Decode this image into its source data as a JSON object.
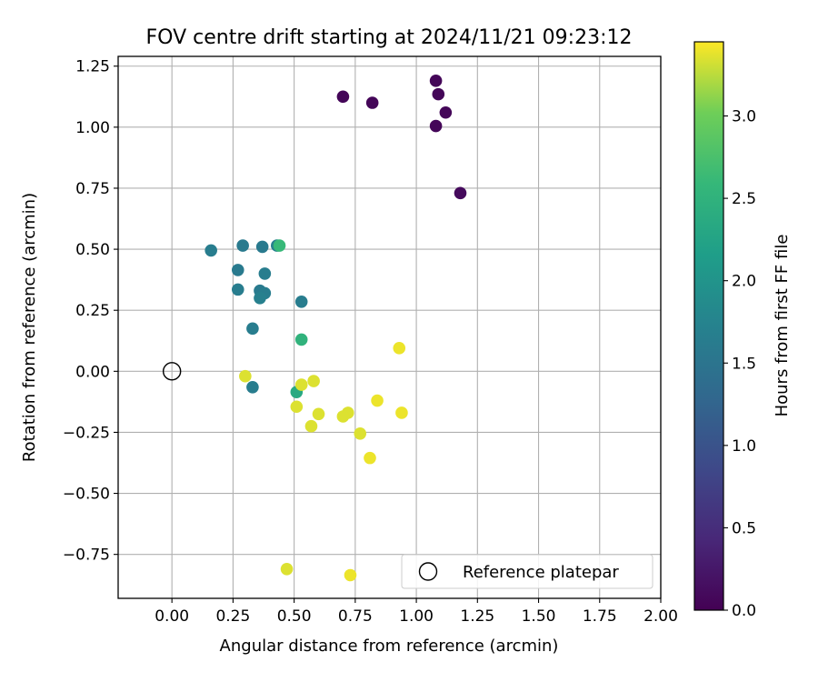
{
  "chart_data": {
    "type": "scatter",
    "title": "FOV centre drift starting at 2024/11/21 09:23:12",
    "xlabel": "Angular distance from reference (arcmin)",
    "ylabel": "Rotation from reference (arcmin)",
    "xlim": [
      -0.22,
      2.0
    ],
    "ylim": [
      -0.93,
      1.29
    ],
    "xticks": [
      0.0,
      0.25,
      0.5,
      0.75,
      1.0,
      1.25,
      1.5,
      1.75,
      2.0
    ],
    "xtick_labels": [
      "0.00",
      "0.25",
      "0.50",
      "0.75",
      "1.00",
      "1.25",
      "1.50",
      "1.75",
      "2.00"
    ],
    "yticks": [
      -0.75,
      -0.5,
      -0.25,
      0.0,
      0.25,
      0.5,
      0.75,
      1.0,
      1.25
    ],
    "ytick_labels": [
      "−0.75",
      "−0.50",
      "−0.25",
      "0.00",
      "0.25",
      "0.50",
      "0.75",
      "1.00",
      "1.25"
    ],
    "grid": true,
    "legend": {
      "placement": "lower-right",
      "entries": [
        "Reference platepar"
      ]
    },
    "colorbar": {
      "label": "Hours from first FF file",
      "colormap": "viridis",
      "range": [
        0.0,
        3.45
      ],
      "ticks": [
        0.0,
        0.5,
        1.0,
        1.5,
        2.0,
        2.5,
        3.0
      ],
      "tick_labels": [
        "0.0",
        "0.5",
        "1.0",
        "1.5",
        "2.0",
        "2.5",
        "3.0"
      ]
    },
    "reference": {
      "name": "Reference platepar",
      "x": 0.0,
      "y": 0.0
    },
    "points": [
      {
        "x": 0.7,
        "y": 1.125,
        "c": 0.05
      },
      {
        "x": 0.82,
        "y": 1.1,
        "c": 0.05
      },
      {
        "x": 1.08,
        "y": 1.19,
        "c": 0.05
      },
      {
        "x": 1.09,
        "y": 1.135,
        "c": 0.05
      },
      {
        "x": 1.12,
        "y": 1.06,
        "c": 0.05
      },
      {
        "x": 1.08,
        "y": 1.005,
        "c": 0.05
      },
      {
        "x": 1.18,
        "y": 0.73,
        "c": 0.1
      },
      {
        "x": 0.16,
        "y": 0.495,
        "c": 1.65
      },
      {
        "x": 0.29,
        "y": 0.515,
        "c": 1.6
      },
      {
        "x": 0.37,
        "y": 0.51,
        "c": 1.6
      },
      {
        "x": 0.43,
        "y": 0.515,
        "c": 1.7
      },
      {
        "x": 0.44,
        "y": 0.515,
        "c": 2.6
      },
      {
        "x": 0.27,
        "y": 0.415,
        "c": 1.6
      },
      {
        "x": 0.38,
        "y": 0.4,
        "c": 1.65
      },
      {
        "x": 0.27,
        "y": 0.335,
        "c": 1.65
      },
      {
        "x": 0.36,
        "y": 0.33,
        "c": 1.6
      },
      {
        "x": 0.38,
        "y": 0.32,
        "c": 1.65
      },
      {
        "x": 0.36,
        "y": 0.3,
        "c": 1.7
      },
      {
        "x": 0.53,
        "y": 0.285,
        "c": 1.65
      },
      {
        "x": 0.33,
        "y": 0.175,
        "c": 1.65
      },
      {
        "x": 0.53,
        "y": 0.13,
        "c": 2.5
      },
      {
        "x": 0.33,
        "y": -0.065,
        "c": 1.65
      },
      {
        "x": 0.51,
        "y": -0.085,
        "c": 2.35
      },
      {
        "x": 0.3,
        "y": -0.02,
        "c": 3.35
      },
      {
        "x": 0.53,
        "y": -0.055,
        "c": 3.35
      },
      {
        "x": 0.58,
        "y": -0.04,
        "c": 3.35
      },
      {
        "x": 0.93,
        "y": 0.095,
        "c": 3.4
      },
      {
        "x": 0.51,
        "y": -0.145,
        "c": 3.35
      },
      {
        "x": 0.6,
        "y": -0.175,
        "c": 3.35
      },
      {
        "x": 0.72,
        "y": -0.17,
        "c": 3.35
      },
      {
        "x": 0.7,
        "y": -0.185,
        "c": 3.35
      },
      {
        "x": 0.84,
        "y": -0.12,
        "c": 3.4
      },
      {
        "x": 0.94,
        "y": -0.17,
        "c": 3.4
      },
      {
        "x": 0.57,
        "y": -0.225,
        "c": 3.35
      },
      {
        "x": 0.77,
        "y": -0.255,
        "c": 3.35
      },
      {
        "x": 0.81,
        "y": -0.355,
        "c": 3.4
      },
      {
        "x": 0.47,
        "y": -0.81,
        "c": 3.35
      },
      {
        "x": 0.73,
        "y": -0.835,
        "c": 3.4
      }
    ]
  }
}
